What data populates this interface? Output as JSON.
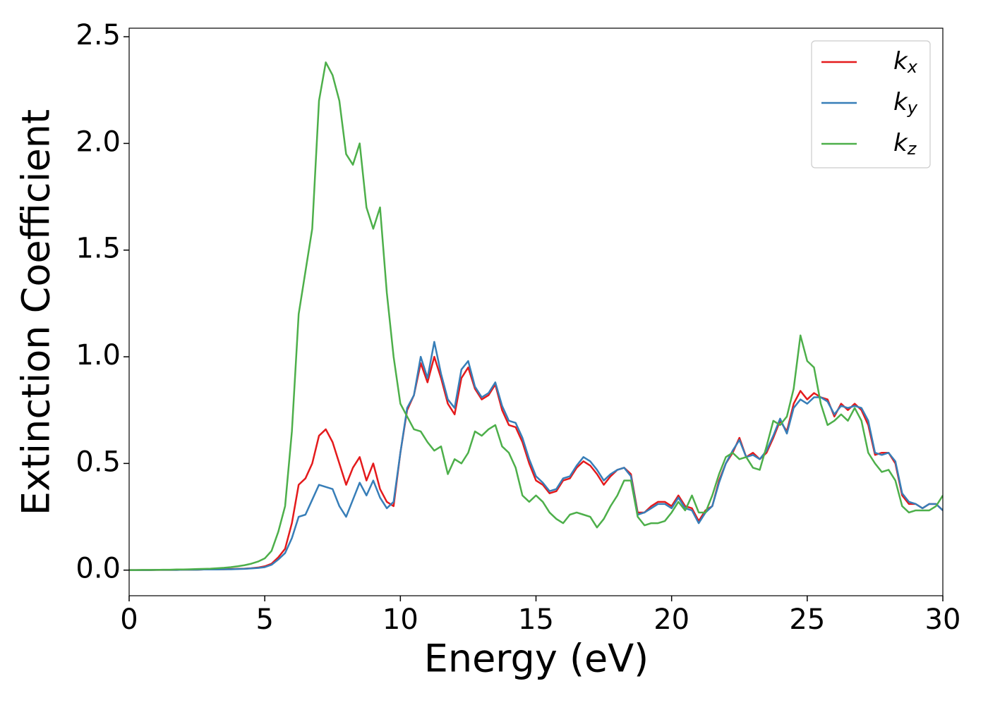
{
  "chart_data": {
    "type": "line",
    "xlabel": "Energy (eV)",
    "ylabel": "Extinction Coefficient",
    "xlim": [
      0,
      30
    ],
    "ylim": [
      -0.12,
      2.54
    ],
    "xticks": [
      0,
      5,
      10,
      15,
      20,
      25,
      30
    ],
    "yticks": [
      {
        "value": 0,
        "label": "0.0"
      },
      0.5,
      {
        "value": 1,
        "label": "1.0"
      },
      1.5,
      {
        "value": 2,
        "label": "2.0"
      },
      2.5
    ],
    "legend": "upper right",
    "x": [
      0,
      0.25,
      0.5,
      0.75,
      1,
      1.25,
      1.5,
      1.75,
      2,
      2.25,
      2.5,
      2.75,
      3,
      3.25,
      3.5,
      3.75,
      4,
      4.25,
      4.5,
      4.75,
      5,
      5.25,
      5.5,
      5.75,
      6,
      6.25,
      6.5,
      6.75,
      7,
      7.25,
      7.5,
      7.75,
      8,
      8.25,
      8.5,
      8.75,
      9,
      9.25,
      9.5,
      9.75,
      10,
      10.25,
      10.5,
      10.75,
      11,
      11.25,
      11.5,
      11.75,
      12,
      12.25,
      12.5,
      12.75,
      13,
      13.25,
      13.5,
      13.75,
      14,
      14.25,
      14.5,
      14.75,
      15,
      15.25,
      15.5,
      15.75,
      16,
      16.25,
      16.5,
      16.75,
      17,
      17.25,
      17.5,
      17.75,
      18,
      18.25,
      18.5,
      18.75,
      19,
      19.25,
      19.5,
      19.75,
      20,
      20.25,
      20.5,
      20.75,
      21,
      21.25,
      21.5,
      21.75,
      22,
      22.25,
      22.5,
      22.75,
      23,
      23.25,
      23.5,
      23.75,
      24,
      24.25,
      24.5,
      24.75,
      25,
      25.25,
      25.5,
      25.75,
      26,
      26.25,
      26.5,
      26.75,
      27,
      27.25,
      27.5,
      27.75,
      28,
      28.25,
      28.5,
      28.75,
      29,
      29.25,
      29.5,
      29.75,
      30
    ],
    "series": [
      {
        "name": "kx",
        "color": "#e41a1c",
        "values": [
          0,
          0,
          0,
          0,
          0.001,
          0.001,
          0.001,
          0.001,
          0.002,
          0.002,
          0.002,
          0.003,
          0.003,
          0.004,
          0.004,
          0.005,
          0.006,
          0.007,
          0.009,
          0.012,
          0.018,
          0.03,
          0.06,
          0.1,
          0.22,
          0.4,
          0.43,
          0.5,
          0.63,
          0.66,
          0.6,
          0.5,
          0.4,
          0.48,
          0.53,
          0.42,
          0.5,
          0.38,
          0.32,
          0.3,
          0.55,
          0.75,
          0.82,
          0.97,
          0.88,
          1.0,
          0.9,
          0.78,
          0.73,
          0.9,
          0.95,
          0.85,
          0.8,
          0.82,
          0.87,
          0.75,
          0.68,
          0.67,
          0.6,
          0.5,
          0.42,
          0.4,
          0.36,
          0.37,
          0.42,
          0.43,
          0.48,
          0.51,
          0.49,
          0.45,
          0.4,
          0.44,
          0.47,
          0.48,
          0.45,
          0.27,
          0.27,
          0.3,
          0.32,
          0.32,
          0.3,
          0.35,
          0.3,
          0.29,
          0.23,
          0.28,
          0.3,
          0.42,
          0.5,
          0.55,
          0.62,
          0.53,
          0.55,
          0.52,
          0.55,
          0.62,
          0.7,
          0.65,
          0.78,
          0.84,
          0.8,
          0.83,
          0.81,
          0.8,
          0.72,
          0.78,
          0.75,
          0.78,
          0.75,
          0.68,
          0.54,
          0.55,
          0.55,
          0.5,
          0.35,
          0.31,
          0.31,
          0.29,
          0.31,
          0.31,
          0.28
        ]
      },
      {
        "name": "ky",
        "color": "#377eb8",
        "values": [
          0,
          0,
          0,
          0,
          0.001,
          0.001,
          0.001,
          0.001,
          0.002,
          0.002,
          0.002,
          0.003,
          0.003,
          0.003,
          0.004,
          0.004,
          0.005,
          0.006,
          0.008,
          0.01,
          0.014,
          0.025,
          0.05,
          0.08,
          0.15,
          0.25,
          0.26,
          0.33,
          0.4,
          0.39,
          0.38,
          0.3,
          0.25,
          0.33,
          0.41,
          0.35,
          0.42,
          0.34,
          0.29,
          0.32,
          0.55,
          0.76,
          0.82,
          1.0,
          0.9,
          1.07,
          0.92,
          0.8,
          0.76,
          0.94,
          0.98,
          0.86,
          0.81,
          0.83,
          0.88,
          0.77,
          0.7,
          0.69,
          0.62,
          0.52,
          0.44,
          0.41,
          0.37,
          0.38,
          0.43,
          0.44,
          0.49,
          0.53,
          0.51,
          0.47,
          0.42,
          0.45,
          0.47,
          0.48,
          0.44,
          0.26,
          0.27,
          0.29,
          0.31,
          0.31,
          0.29,
          0.34,
          0.29,
          0.28,
          0.22,
          0.27,
          0.3,
          0.41,
          0.5,
          0.56,
          0.61,
          0.53,
          0.54,
          0.52,
          0.56,
          0.63,
          0.71,
          0.64,
          0.76,
          0.8,
          0.78,
          0.81,
          0.81,
          0.79,
          0.73,
          0.77,
          0.76,
          0.77,
          0.76,
          0.7,
          0.55,
          0.54,
          0.55,
          0.51,
          0.36,
          0.32,
          0.31,
          0.29,
          0.31,
          0.31,
          0.28
        ]
      },
      {
        "name": "kz",
        "color": "#4daf4a",
        "values": [
          0,
          0,
          0.001,
          0.001,
          0.001,
          0.002,
          0.002,
          0.003,
          0.003,
          0.004,
          0.005,
          0.006,
          0.007,
          0.009,
          0.011,
          0.014,
          0.018,
          0.023,
          0.03,
          0.04,
          0.055,
          0.09,
          0.18,
          0.3,
          0.65,
          1.2,
          1.4,
          1.6,
          2.2,
          2.38,
          2.32,
          2.2,
          1.95,
          1.9,
          2.0,
          1.7,
          1.6,
          1.7,
          1.3,
          1.0,
          0.78,
          0.72,
          0.66,
          0.65,
          0.6,
          0.56,
          0.58,
          0.45,
          0.52,
          0.5,
          0.55,
          0.65,
          0.63,
          0.66,
          0.68,
          0.58,
          0.55,
          0.48,
          0.35,
          0.32,
          0.35,
          0.32,
          0.27,
          0.24,
          0.22,
          0.26,
          0.27,
          0.26,
          0.25,
          0.2,
          0.24,
          0.3,
          0.35,
          0.42,
          0.42,
          0.25,
          0.21,
          0.22,
          0.22,
          0.23,
          0.27,
          0.32,
          0.28,
          0.35,
          0.27,
          0.27,
          0.35,
          0.45,
          0.53,
          0.55,
          0.52,
          0.53,
          0.48,
          0.47,
          0.58,
          0.7,
          0.68,
          0.72,
          0.85,
          1.1,
          0.98,
          0.95,
          0.78,
          0.68,
          0.7,
          0.73,
          0.7,
          0.76,
          0.7,
          0.55,
          0.5,
          0.46,
          0.47,
          0.42,
          0.3,
          0.27,
          0.28,
          0.28,
          0.28,
          0.3,
          0.35
        ]
      }
    ]
  }
}
